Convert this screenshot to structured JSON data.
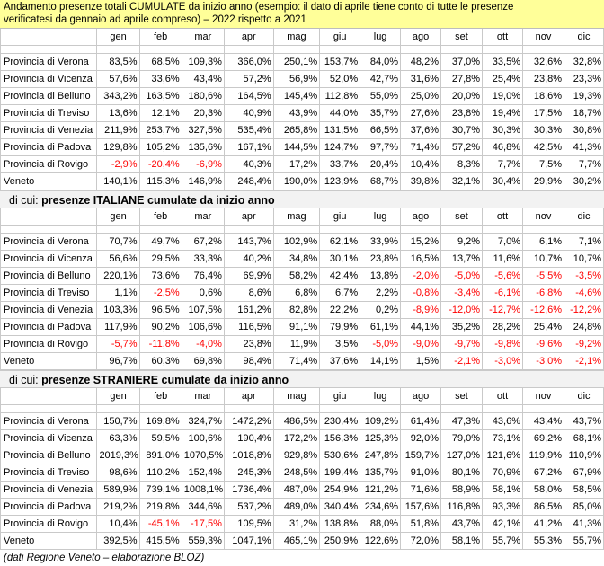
{
  "title_line1": "Andamento presenze totali CUMULATE da inizio anno (esempio: il dato di aprile tiene conto di tutte le presenze",
  "title_line2": "verificatesi da gennaio ad aprile compreso) – 2022 rispetto a 2021",
  "months": [
    "gen",
    "feb",
    "mar",
    "apr",
    "mag",
    "giu",
    "lug",
    "ago",
    "set",
    "ott",
    "nov",
    "dic"
  ],
  "sections": [
    {
      "heading_prefix": "",
      "heading_bold": "",
      "rows": [
        {
          "label": "Provincia di Verona",
          "values": [
            "83,5%",
            "68,5%",
            "109,3%",
            "366,0%",
            "250,1%",
            "153,7%",
            "84,0%",
            "48,2%",
            "37,0%",
            "33,5%",
            "32,6%",
            "32,8%"
          ]
        },
        {
          "label": "Provincia di Vicenza",
          "values": [
            "57,6%",
            "33,6%",
            "43,4%",
            "57,2%",
            "56,9%",
            "52,0%",
            "42,7%",
            "31,6%",
            "27,8%",
            "25,4%",
            "23,8%",
            "23,3%"
          ]
        },
        {
          "label": "Provincia di Belluno",
          "values": [
            "343,2%",
            "163,5%",
            "180,6%",
            "164,5%",
            "145,4%",
            "112,8%",
            "55,0%",
            "25,0%",
            "20,0%",
            "19,0%",
            "18,6%",
            "19,3%"
          ]
        },
        {
          "label": "Provincia di Treviso",
          "values": [
            "13,6%",
            "12,1%",
            "20,3%",
            "40,9%",
            "43,9%",
            "44,0%",
            "35,7%",
            "27,6%",
            "23,8%",
            "19,4%",
            "17,5%",
            "18,7%"
          ]
        },
        {
          "label": "Provincia di Venezia",
          "values": [
            "211,9%",
            "253,7%",
            "327,5%",
            "535,4%",
            "265,8%",
            "131,5%",
            "66,5%",
            "37,6%",
            "30,7%",
            "30,3%",
            "30,3%",
            "30,8%"
          ]
        },
        {
          "label": "Provincia di Padova",
          "values": [
            "129,8%",
            "105,2%",
            "135,6%",
            "167,1%",
            "144,5%",
            "124,7%",
            "97,7%",
            "71,4%",
            "57,2%",
            "46,8%",
            "42,5%",
            "41,3%"
          ]
        },
        {
          "label": "Provincia di Rovigo",
          "values": [
            "-2,9%",
            "-20,4%",
            "-6,9%",
            "40,3%",
            "17,2%",
            "33,7%",
            "20,4%",
            "10,4%",
            "8,3%",
            "7,7%",
            "7,5%",
            "7,7%"
          ]
        },
        {
          "label": "Veneto",
          "values": [
            "140,1%",
            "115,3%",
            "146,9%",
            "248,4%",
            "190,0%",
            "123,9%",
            "68,7%",
            "39,8%",
            "32,1%",
            "30,4%",
            "29,9%",
            "30,2%"
          ]
        }
      ]
    },
    {
      "heading_prefix": "di cui: ",
      "heading_bold": "presenze ITALIANE cumulate da inizio anno",
      "rows": [
        {
          "label": "Provincia di Verona",
          "values": [
            "70,7%",
            "49,7%",
            "67,2%",
            "143,7%",
            "102,9%",
            "62,1%",
            "33,9%",
            "15,2%",
            "9,2%",
            "7,0%",
            "6,1%",
            "7,1%"
          ]
        },
        {
          "label": "Provincia di Vicenza",
          "values": [
            "56,6%",
            "29,5%",
            "33,3%",
            "40,2%",
            "34,8%",
            "30,1%",
            "23,8%",
            "16,5%",
            "13,7%",
            "11,6%",
            "10,7%",
            "10,7%"
          ]
        },
        {
          "label": "Provincia di Belluno",
          "values": [
            "220,1%",
            "73,6%",
            "76,4%",
            "69,9%",
            "58,2%",
            "42,4%",
            "13,8%",
            "-2,0%",
            "-5,0%",
            "-5,6%",
            "-5,5%",
            "-3,5%"
          ]
        },
        {
          "label": "Provincia di Treviso",
          "values": [
            "1,1%",
            "-2,5%",
            "0,6%",
            "8,6%",
            "6,8%",
            "6,7%",
            "2,2%",
            "-0,8%",
            "-3,4%",
            "-6,1%",
            "-6,8%",
            "-4,6%"
          ]
        },
        {
          "label": "Provincia di Venezia",
          "values": [
            "103,3%",
            "96,5%",
            "107,5%",
            "161,2%",
            "82,8%",
            "22,2%",
            "0,2%",
            "-8,9%",
            "-12,0%",
            "-12,7%",
            "-12,6%",
            "-12,2%"
          ]
        },
        {
          "label": "Provincia di Padova",
          "values": [
            "117,9%",
            "90,2%",
            "106,6%",
            "116,5%",
            "91,1%",
            "79,9%",
            "61,1%",
            "44,1%",
            "35,2%",
            "28,2%",
            "25,4%",
            "24,8%"
          ]
        },
        {
          "label": "Provincia di Rovigo",
          "values": [
            "-5,7%",
            "-11,8%",
            "-4,0%",
            "23,8%",
            "11,9%",
            "3,5%",
            "-5,0%",
            "-9,0%",
            "-9,7%",
            "-9,8%",
            "-9,6%",
            "-9,2%"
          ]
        },
        {
          "label": "Veneto",
          "values": [
            "96,7%",
            "60,3%",
            "69,8%",
            "98,4%",
            "71,4%",
            "37,6%",
            "14,1%",
            "1,5%",
            "-2,1%",
            "-3,0%",
            "-3,0%",
            "-2,1%"
          ]
        }
      ]
    },
    {
      "heading_prefix": "di cui: ",
      "heading_bold": "presenze STRANIERE cumulate da inizio anno",
      "rows": [
        {
          "label": "Provincia di Verona",
          "values": [
            "150,7%",
            "169,8%",
            "324,7%",
            "1472,2%",
            "486,5%",
            "230,4%",
            "109,2%",
            "61,4%",
            "47,3%",
            "43,6%",
            "43,4%",
            "43,7%"
          ]
        },
        {
          "label": "Provincia di Vicenza",
          "values": [
            "63,3%",
            "59,5%",
            "100,6%",
            "190,4%",
            "172,2%",
            "156,3%",
            "125,3%",
            "92,0%",
            "79,0%",
            "73,1%",
            "69,2%",
            "68,1%"
          ]
        },
        {
          "label": "Provincia di Belluno",
          "values": [
            "2019,3%",
            "891,0%",
            "1070,5%",
            "1018,8%",
            "929,8%",
            "530,6%",
            "247,8%",
            "159,7%",
            "127,0%",
            "121,6%",
            "119,9%",
            "110,9%"
          ]
        },
        {
          "label": "Provincia di Treviso",
          "values": [
            "98,6%",
            "110,2%",
            "152,4%",
            "245,3%",
            "248,5%",
            "199,4%",
            "135,7%",
            "91,0%",
            "80,1%",
            "70,9%",
            "67,2%",
            "67,9%"
          ]
        },
        {
          "label": "Provincia di Venezia",
          "values": [
            "589,9%",
            "739,1%",
            "1008,1%",
            "1736,4%",
            "487,0%",
            "254,9%",
            "121,2%",
            "71,6%",
            "58,9%",
            "58,1%",
            "58,0%",
            "58,5%"
          ]
        },
        {
          "label": "Provincia di Padova",
          "values": [
            "219,2%",
            "219,8%",
            "344,6%",
            "537,2%",
            "489,0%",
            "340,4%",
            "234,6%",
            "157,6%",
            "116,8%",
            "93,3%",
            "86,5%",
            "85,0%"
          ]
        },
        {
          "label": "Provincia di Rovigo",
          "values": [
            "10,4%",
            "-45,1%",
            "-17,5%",
            "109,5%",
            "31,2%",
            "138,8%",
            "88,0%",
            "51,8%",
            "43,7%",
            "42,1%",
            "41,2%",
            "41,3%"
          ]
        },
        {
          "label": "Veneto",
          "values": [
            "392,5%",
            "415,5%",
            "559,3%",
            "1047,1%",
            "465,1%",
            "250,9%",
            "122,6%",
            "72,0%",
            "58,1%",
            "55,7%",
            "55,3%",
            "55,7%"
          ]
        }
      ]
    }
  ],
  "footer": "(dati Regione Veneto – elaborazione BLOZ)",
  "colors": {
    "header_bg": "#ffff99",
    "negative": "#ff0000",
    "section_bg": "#f2f2f2",
    "grid": "#c9c9c9"
  }
}
